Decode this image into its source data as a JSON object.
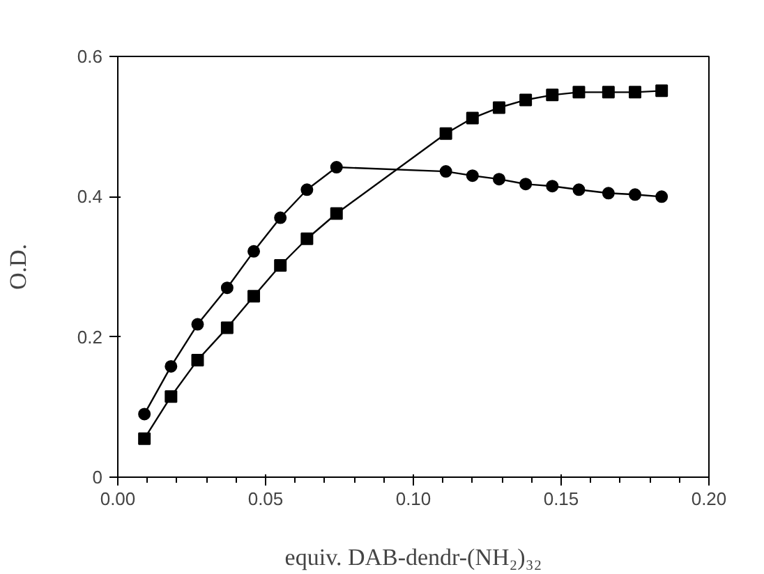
{
  "chart_data": {
    "type": "line",
    "xlabel": "equiv. DAB-dendr-(NH₂)₃₂",
    "ylabel": "O.D.",
    "xlim": [
      0,
      0.2
    ],
    "xticks": [
      {
        "value": 0,
        "label": "0.00"
      },
      {
        "value": 0.05,
        "label": "0.05"
      },
      {
        "value": 0.1,
        "label": "0.10"
      },
      {
        "value": 0.15,
        "label": "0.15"
      },
      {
        "value": 0.2,
        "label": "0.20"
      }
    ],
    "ylim": [
      0,
      0.6
    ],
    "yticks": [
      0,
      0.2,
      0.4,
      0.6
    ],
    "grid": false,
    "series": [
      {
        "marker": "circle",
        "color": "#000000",
        "x": [
          0.009,
          0.018,
          0.027,
          0.037,
          0.046,
          0.055,
          0.064,
          0.074,
          0.111,
          0.12,
          0.129,
          0.138,
          0.147,
          0.156,
          0.166,
          0.175,
          0.184
        ],
        "values": [
          0.09,
          0.158,
          0.218,
          0.27,
          0.322,
          0.37,
          0.41,
          0.442,
          0.436,
          0.43,
          0.425,
          0.418,
          0.415,
          0.41,
          0.405,
          0.403,
          0.4
        ]
      },
      {
        "marker": "square",
        "color": "#000000",
        "x": [
          0.009,
          0.018,
          0.027,
          0.037,
          0.046,
          0.055,
          0.064,
          0.074,
          0.111,
          0.12,
          0.129,
          0.138,
          0.147,
          0.156,
          0.166,
          0.175,
          0.184
        ],
        "values": [
          0.055,
          0.115,
          0.167,
          0.213,
          0.258,
          0.302,
          0.34,
          0.376,
          0.49,
          0.512,
          0.527,
          0.538,
          0.545,
          0.549,
          0.549,
          0.549,
          0.551
        ]
      }
    ]
  }
}
